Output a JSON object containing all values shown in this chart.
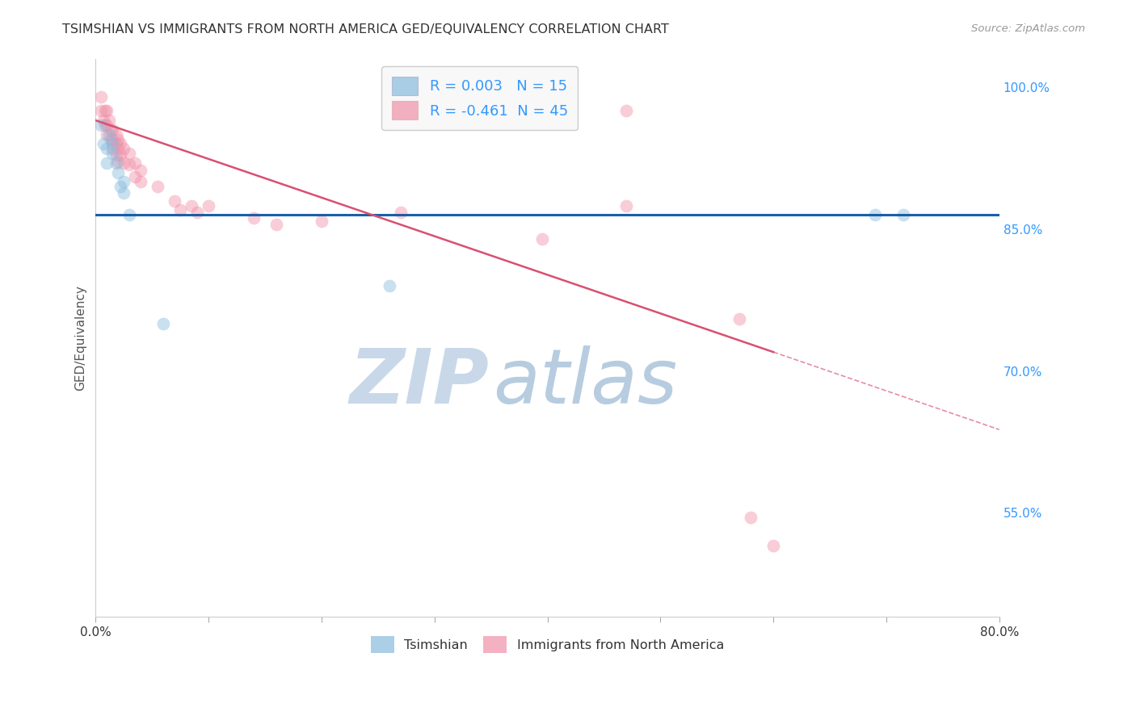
{
  "title": "TSIMSHIAN VS IMMIGRANTS FROM NORTH AMERICA GED/EQUIVALENCY CORRELATION CHART",
  "source": "Source: ZipAtlas.com",
  "ylabel": "GED/Equivalency",
  "xlim": [
    0.0,
    0.8
  ],
  "ylim": [
    0.44,
    1.03
  ],
  "y_ticks": [
    0.55,
    0.7,
    0.85,
    1.0
  ],
  "y_tick_labels": [
    "55.0%",
    "70.0%",
    "85.0%",
    "100.0%"
  ],
  "blue_scatter": [
    [
      0.005,
      0.96
    ],
    [
      0.007,
      0.94
    ],
    [
      0.01,
      0.935
    ],
    [
      0.01,
      0.92
    ],
    [
      0.012,
      0.95
    ],
    [
      0.015,
      0.94
    ],
    [
      0.015,
      0.93
    ],
    [
      0.018,
      0.92
    ],
    [
      0.02,
      0.91
    ],
    [
      0.022,
      0.895
    ],
    [
      0.025,
      0.9
    ],
    [
      0.025,
      0.888
    ],
    [
      0.03,
      0.865
    ],
    [
      0.06,
      0.75
    ],
    [
      0.26,
      0.79
    ],
    [
      0.69,
      0.865
    ],
    [
      0.715,
      0.865
    ]
  ],
  "pink_scatter": [
    [
      0.005,
      0.99
    ],
    [
      0.005,
      0.975
    ],
    [
      0.007,
      0.965
    ],
    [
      0.008,
      0.975
    ],
    [
      0.008,
      0.96
    ],
    [
      0.01,
      0.975
    ],
    [
      0.01,
      0.96
    ],
    [
      0.01,
      0.95
    ],
    [
      0.012,
      0.965
    ],
    [
      0.013,
      0.955
    ],
    [
      0.013,
      0.945
    ],
    [
      0.015,
      0.955
    ],
    [
      0.015,
      0.945
    ],
    [
      0.015,
      0.935
    ],
    [
      0.018,
      0.95
    ],
    [
      0.018,
      0.94
    ],
    [
      0.018,
      0.928
    ],
    [
      0.02,
      0.945
    ],
    [
      0.02,
      0.935
    ],
    [
      0.02,
      0.922
    ],
    [
      0.022,
      0.94
    ],
    [
      0.022,
      0.928
    ],
    [
      0.025,
      0.935
    ],
    [
      0.025,
      0.92
    ],
    [
      0.03,
      0.93
    ],
    [
      0.03,
      0.918
    ],
    [
      0.035,
      0.92
    ],
    [
      0.035,
      0.905
    ],
    [
      0.04,
      0.912
    ],
    [
      0.04,
      0.9
    ],
    [
      0.055,
      0.895
    ],
    [
      0.07,
      0.88
    ],
    [
      0.075,
      0.87
    ],
    [
      0.085,
      0.875
    ],
    [
      0.09,
      0.868
    ],
    [
      0.1,
      0.875
    ],
    [
      0.14,
      0.862
    ],
    [
      0.16,
      0.855
    ],
    [
      0.2,
      0.858
    ],
    [
      0.27,
      0.868
    ],
    [
      0.395,
      0.84
    ],
    [
      0.47,
      0.975
    ],
    [
      0.47,
      0.875
    ],
    [
      0.57,
      0.755
    ],
    [
      0.58,
      0.545
    ],
    [
      0.6,
      0.515
    ]
  ],
  "blue_line": {
    "x": [
      0.0,
      0.8
    ],
    "y": [
      0.865,
      0.865
    ]
  },
  "pink_line_solid": {
    "x": [
      0.0,
      0.6
    ],
    "y": [
      0.965,
      0.72
    ]
  },
  "pink_line_dashed": {
    "x": [
      0.6,
      0.8
    ],
    "y": [
      0.72,
      0.638
    ]
  },
  "scatter_size": 130,
  "scatter_alpha": 0.45,
  "blue_color": "#88bbdd",
  "pink_color": "#f090a8",
  "blue_line_color": "#1a5fa8",
  "pink_line_color": "#d85070",
  "watermark_zip": "ZIP",
  "watermark_atlas": "atlas",
  "watermark_color_zip": "#c8d8e8",
  "watermark_color_atlas": "#b8cce0",
  "background_color": "#ffffff",
  "grid_color": "#e0e0e0",
  "legend_box_color": "#f8f8f8",
  "legend_border_color": "#cccccc",
  "blue_legend_color": "#88bbdd",
  "pink_legend_color": "#f090a8",
  "legend_text_color": "#3399ff",
  "axis_text_color": "#3399ff",
  "title_color": "#333333",
  "ylabel_color": "#555555"
}
